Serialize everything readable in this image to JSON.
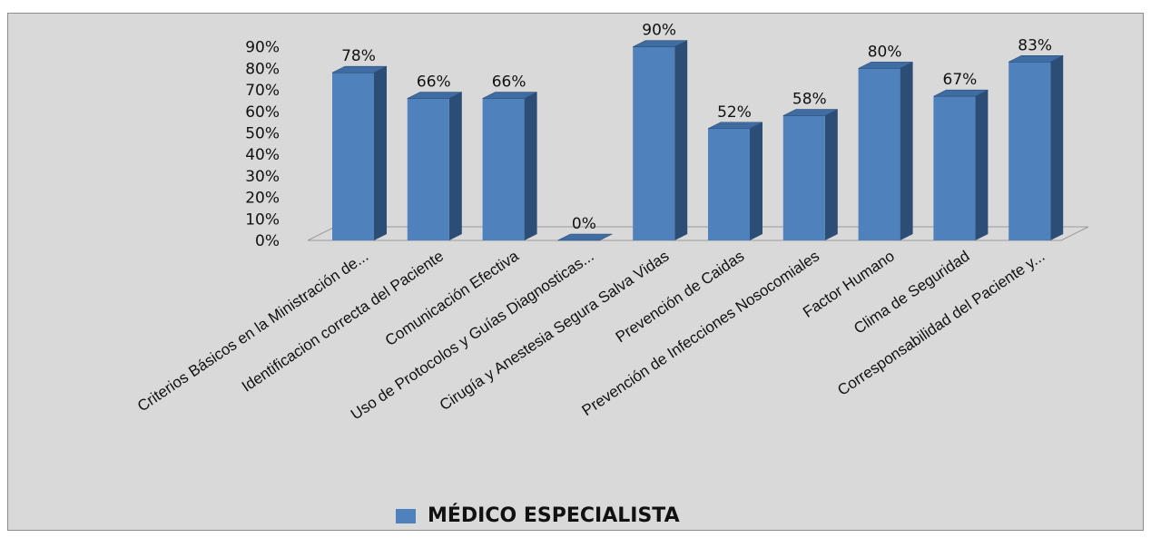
{
  "chart_data": {
    "type": "bar",
    "style": "3d-column",
    "categories": [
      "Criterios Básicos en la Ministración de...",
      "Identificacion correcta del Paciente",
      "Comunicación Efectiva",
      "Uso de Protocolos y Guías Diagnosticas...",
      "Cirugía y Anestesia Segura Salva Vidas",
      "Prevención de Caidas",
      "Prevención de Infecciones Nosocomiales",
      "Factor Humano",
      "Clima de Seguridad",
      "Corresponsabilidad del Paciente y..."
    ],
    "series": [
      {
        "name": "MÉDICO ESPECIALISTA",
        "values": [
          78,
          66,
          66,
          0,
          90,
          52,
          58,
          80,
          67,
          83
        ],
        "data_labels": [
          "78%",
          "66%",
          "66%",
          "0%",
          "90%",
          "52%",
          "58%",
          "80%",
          "67%",
          "83%"
        ],
        "color": "#4f81bd"
      }
    ],
    "yticks": [
      "0%",
      "10%",
      "20%",
      "30%",
      "40%",
      "50%",
      "60%",
      "70%",
      "80%",
      "90%"
    ],
    "ylim": [
      0,
      90
    ],
    "title": "",
    "xlabel": "",
    "ylabel": "",
    "grid": false,
    "legend": {
      "position": "bottom",
      "label": "MÉDICO ESPECIALISTA"
    }
  }
}
